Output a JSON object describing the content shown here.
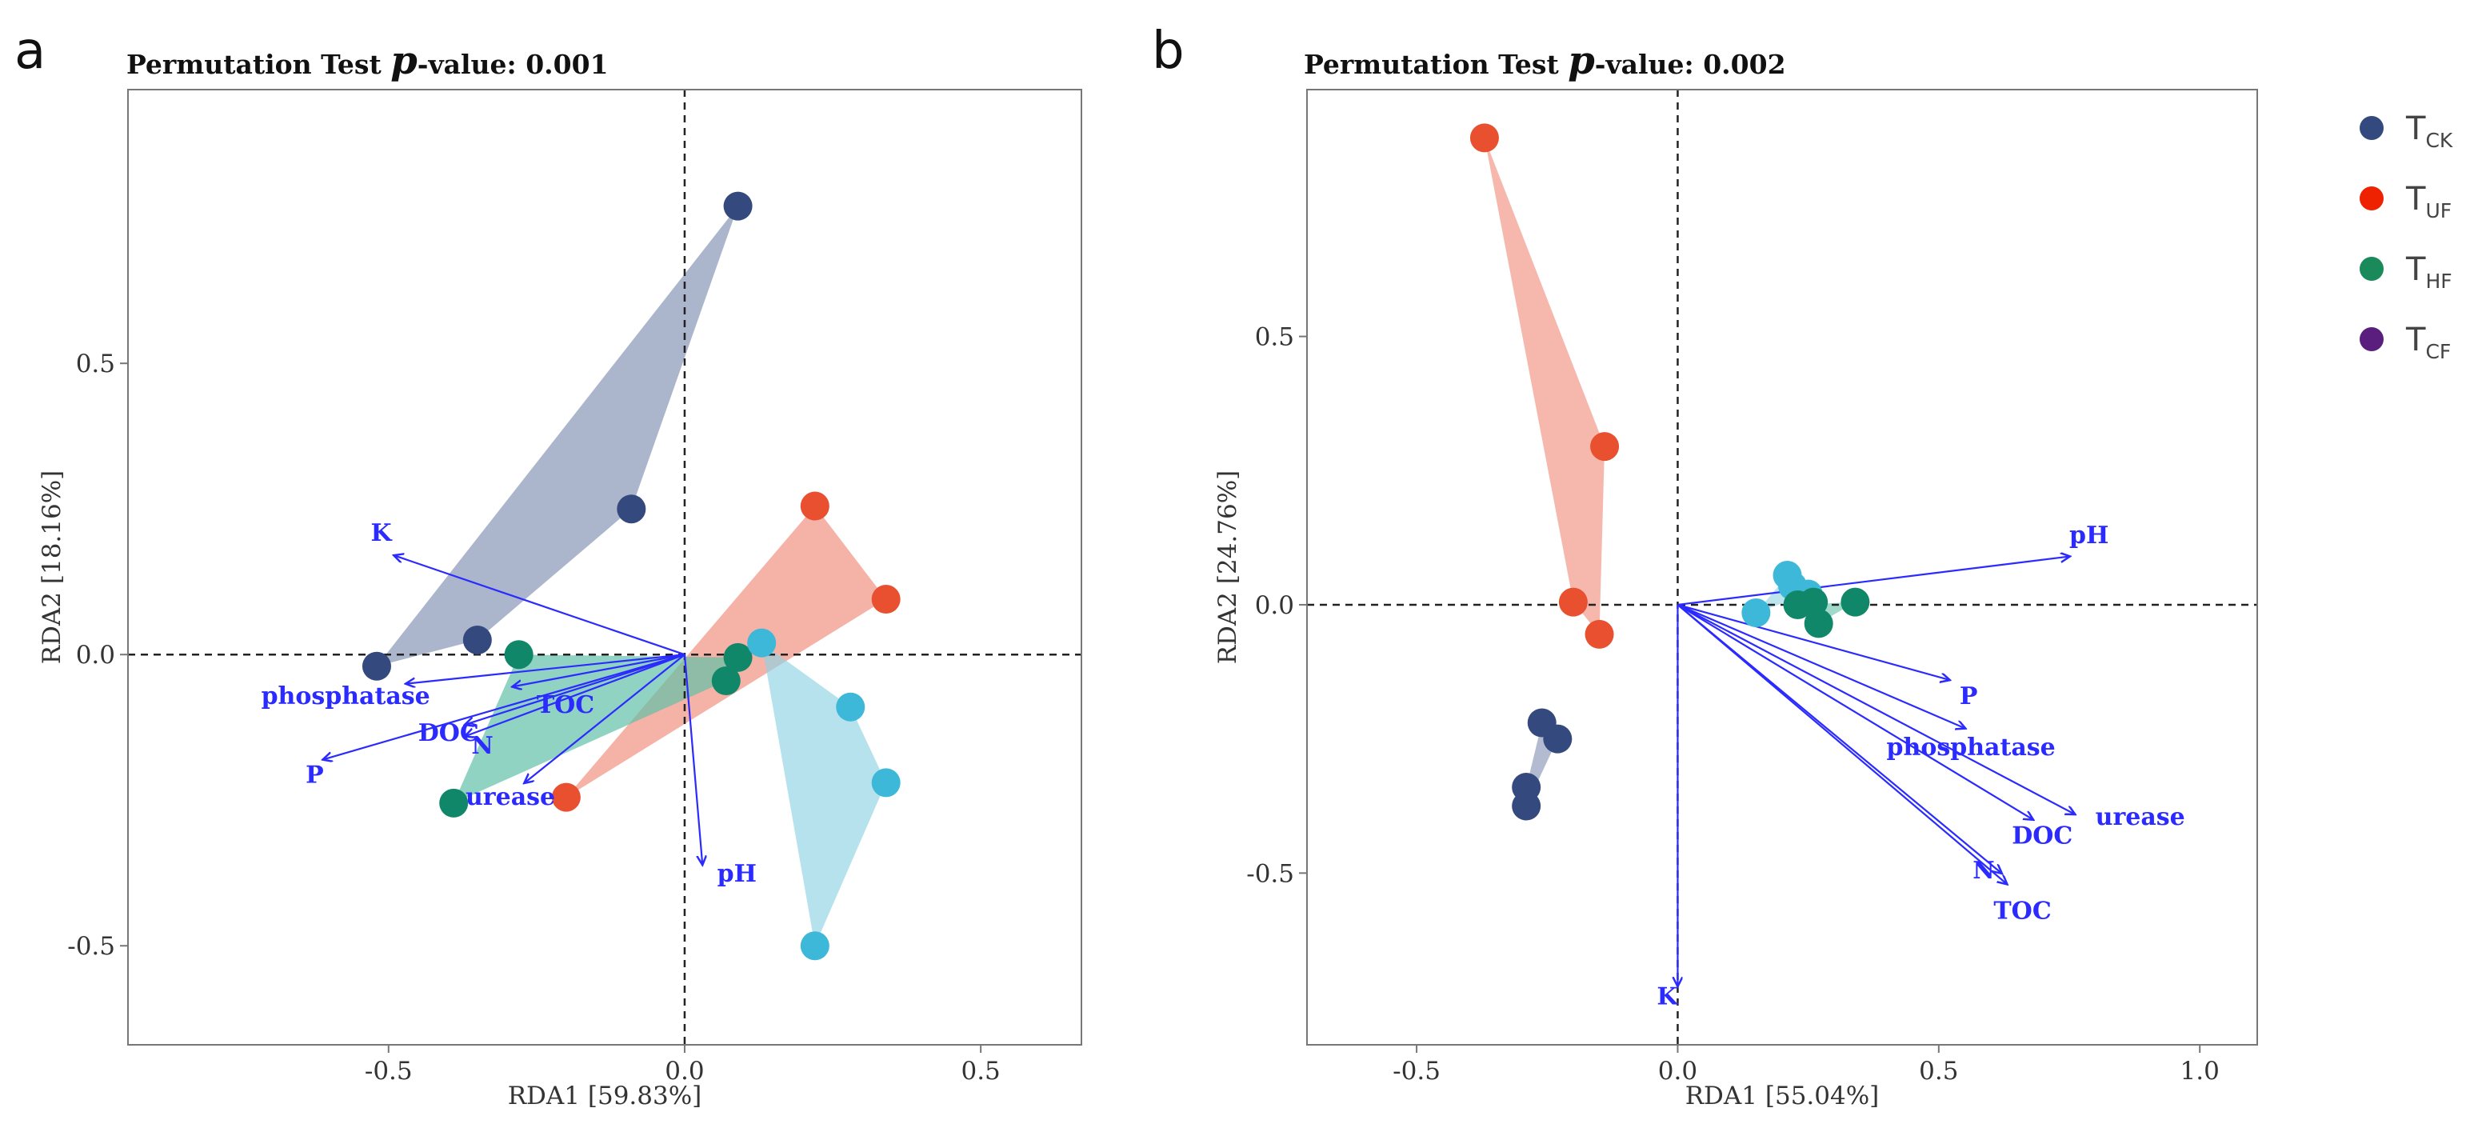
{
  "legend": {
    "items": [
      {
        "label": "T",
        "sub": "CK",
        "color": "#34497e"
      },
      {
        "label": "T",
        "sub": "UF",
        "color": "#ee2200"
      },
      {
        "label": "T",
        "sub": "HF",
        "color": "#1a8a5a"
      },
      {
        "label": "T",
        "sub": "CF",
        "color": "#5a1e7e"
      }
    ]
  },
  "chart_data": [
    {
      "panel": "a",
      "type": "scatter",
      "title_prefix": "Permutation Test ",
      "title_p": "p",
      "title_suffix": "-value: 0.001",
      "xlabel": "RDA1 [59.83%]",
      "ylabel": "RDA2 [18.16%]",
      "xlim": [
        -0.94,
        0.67
      ],
      "ylim": [
        -0.67,
        0.97
      ],
      "xticks": [
        {
          "v": -0.5,
          "label": "-0.5"
        },
        {
          "v": 0.0,
          "label": "0.0"
        },
        {
          "v": 0.5,
          "label": "0.5"
        }
      ],
      "yticks": [
        {
          "v": 0.5,
          "label": "0.5"
        },
        {
          "v": 0.0,
          "label": "0.0"
        },
        {
          "v": -0.5,
          "label": "-0.5"
        }
      ],
      "groups": [
        {
          "name": "CK",
          "point_color": "#34497e",
          "fill": "#7e8daf",
          "fill_opacity": 0.65,
          "points": [
            [
              0.09,
              0.77
            ],
            [
              -0.09,
              0.25
            ],
            [
              -0.35,
              0.025
            ],
            [
              -0.52,
              -0.02
            ]
          ],
          "hull": [
            [
              0.09,
              0.77
            ],
            [
              -0.52,
              -0.02
            ],
            [
              -0.35,
              0.025
            ],
            [
              -0.09,
              0.25
            ]
          ]
        },
        {
          "name": "UF",
          "point_color": "#e8502f",
          "fill": "#ee7e6a",
          "fill_opacity": 0.6,
          "points": [
            [
              0.22,
              0.255
            ],
            [
              0.34,
              0.095
            ],
            [
              -0.2,
              -0.245
            ]
          ],
          "hull": [
            [
              0.22,
              0.255
            ],
            [
              0.34,
              0.095
            ],
            [
              -0.2,
              -0.245
            ]
          ]
        },
        {
          "name": "HF",
          "point_color": "#11876a",
          "fill": "#62c1a8",
          "fill_opacity": 0.7,
          "points": [
            [
              -0.28,
              0.0
            ],
            [
              -0.39,
              -0.255
            ],
            [
              0.09,
              -0.005
            ],
            [
              0.07,
              -0.045
            ]
          ],
          "hull": [
            [
              -0.28,
              0.0
            ],
            [
              -0.39,
              -0.255
            ],
            [
              0.07,
              -0.045
            ],
            [
              0.09,
              -0.005
            ]
          ]
        },
        {
          "name": "CF",
          "point_color": "#3db8d8",
          "fill": "#8fd3e3",
          "fill_opacity": 0.65,
          "points": [
            [
              0.13,
              0.02
            ],
            [
              0.28,
              -0.09
            ],
            [
              0.34,
              -0.22
            ],
            [
              0.22,
              -0.5
            ]
          ],
          "hull": [
            [
              0.13,
              0.02
            ],
            [
              0.28,
              -0.09
            ],
            [
              0.34,
              -0.22
            ],
            [
              0.22,
              -0.5
            ]
          ]
        }
      ],
      "arrows": [
        {
          "label": "K",
          "end": [
            -0.49,
            0.17
          ],
          "label_pos": [
            -0.53,
            0.195
          ]
        },
        {
          "label": "phosphatase",
          "end": [
            -0.47,
            -0.05
          ],
          "label_pos": [
            -0.715,
            -0.085
          ]
        },
        {
          "label": "TOC",
          "end": [
            -0.29,
            -0.055
          ],
          "label_pos": [
            -0.25,
            -0.1
          ]
        },
        {
          "label": "DOC",
          "end": [
            -0.37,
            -0.12
          ],
          "label_pos": [
            -0.45,
            -0.148
          ]
        },
        {
          "label": "N",
          "end": [
            -0.37,
            -0.14
          ],
          "label_pos": [
            -0.36,
            -0.17
          ]
        },
        {
          "label": "P",
          "end": [
            -0.61,
            -0.18
          ],
          "label_pos": [
            -0.64,
            -0.22
          ]
        },
        {
          "label": "urease",
          "end": [
            -0.27,
            -0.22
          ],
          "label_pos": [
            -0.37,
            -0.258
          ]
        },
        {
          "label": "pH",
          "end": [
            0.03,
            -0.36
          ],
          "label_pos": [
            0.055,
            -0.39
          ]
        }
      ]
    },
    {
      "panel": "b",
      "type": "scatter",
      "title_prefix": "Permutation Test ",
      "title_p": "p",
      "title_suffix": "-value: 0.002",
      "xlabel": "RDA1 [55.04%]",
      "ylabel": "RDA2 [24.76%]",
      "xlim": [
        -0.71,
        1.11
      ],
      "ylim": [
        -0.82,
        0.96
      ],
      "xticks": [
        {
          "v": -0.5,
          "label": "-0.5"
        },
        {
          "v": 0.0,
          "label": "0.0"
        },
        {
          "v": 0.5,
          "label": "0.5"
        },
        {
          "v": 1.0,
          "label": "1.0"
        }
      ],
      "yticks": [
        {
          "v": 0.5,
          "label": "0.5"
        },
        {
          "v": 0.0,
          "label": "0.0"
        },
        {
          "v": -0.5,
          "label": "-0.5"
        }
      ],
      "groups": [
        {
          "name": "UF",
          "point_color": "#e8502f",
          "fill": "#ee7e6a",
          "fill_opacity": 0.55,
          "points": [
            [
              -0.37,
              0.87
            ],
            [
              -0.14,
              0.295
            ],
            [
              -0.2,
              0.005
            ],
            [
              -0.15,
              -0.055
            ]
          ],
          "hull": [
            [
              -0.37,
              0.87
            ],
            [
              -0.14,
              0.295
            ],
            [
              -0.15,
              -0.055
            ],
            [
              -0.2,
              0.005
            ]
          ]
        },
        {
          "name": "CK",
          "point_color": "#34497e",
          "fill": "#7e8daf",
          "fill_opacity": 0.6,
          "points": [
            [
              -0.26,
              -0.22
            ],
            [
              -0.23,
              -0.25
            ],
            [
              -0.29,
              -0.34
            ],
            [
              -0.29,
              -0.375
            ]
          ],
          "hull": [
            [
              -0.26,
              -0.22
            ],
            [
              -0.23,
              -0.25
            ],
            [
              -0.29,
              -0.375
            ],
            [
              -0.29,
              -0.34
            ]
          ]
        },
        {
          "name": "CF",
          "point_color": "#3db8d8",
          "fill": "#8fd3e3",
          "fill_opacity": 0.6,
          "points": [
            [
              0.21,
              0.055
            ],
            [
              0.15,
              -0.015
            ],
            [
              0.25,
              0.02
            ],
            [
              0.22,
              0.035
            ]
          ],
          "hull": [
            [
              0.21,
              0.055
            ],
            [
              0.25,
              0.02
            ],
            [
              0.15,
              -0.015
            ]
          ]
        },
        {
          "name": "HF",
          "point_color": "#11876a",
          "fill": "#62c1a8",
          "fill_opacity": 0.6,
          "points": [
            [
              0.34,
              0.005
            ],
            [
              0.27,
              -0.035
            ],
            [
              0.23,
              0.0
            ],
            [
              0.26,
              0.005
            ]
          ],
          "hull": [
            [
              0.34,
              0.005
            ],
            [
              0.27,
              -0.035
            ],
            [
              0.23,
              0.0
            ]
          ]
        }
      ],
      "arrows": [
        {
          "label": "pH",
          "end": [
            0.75,
            0.09
          ],
          "label_pos": [
            0.75,
            0.115
          ]
        },
        {
          "label": "P",
          "end": [
            0.52,
            -0.14
          ],
          "label_pos": [
            0.54,
            -0.185
          ]
        },
        {
          "label": "phosphatase",
          "end": [
            0.55,
            -0.23
          ],
          "label_pos": [
            0.4,
            -0.28
          ]
        },
        {
          "label": "urease",
          "end": [
            0.76,
            -0.39
          ],
          "label_pos": [
            0.8,
            -0.41
          ]
        },
        {
          "label": "DOC",
          "end": [
            0.68,
            -0.4
          ],
          "label_pos": [
            0.64,
            -0.445
          ]
        },
        {
          "label": "N",
          "end": [
            0.62,
            -0.5
          ],
          "label_pos": [
            0.565,
            -0.51
          ]
        },
        {
          "label": "TOC",
          "end": [
            0.63,
            -0.52
          ],
          "label_pos": [
            0.605,
            -0.585
          ]
        },
        {
          "label": "K",
          "end": [
            0.0,
            -0.71
          ],
          "label_pos": [
            -0.04,
            -0.745
          ]
        }
      ]
    }
  ]
}
